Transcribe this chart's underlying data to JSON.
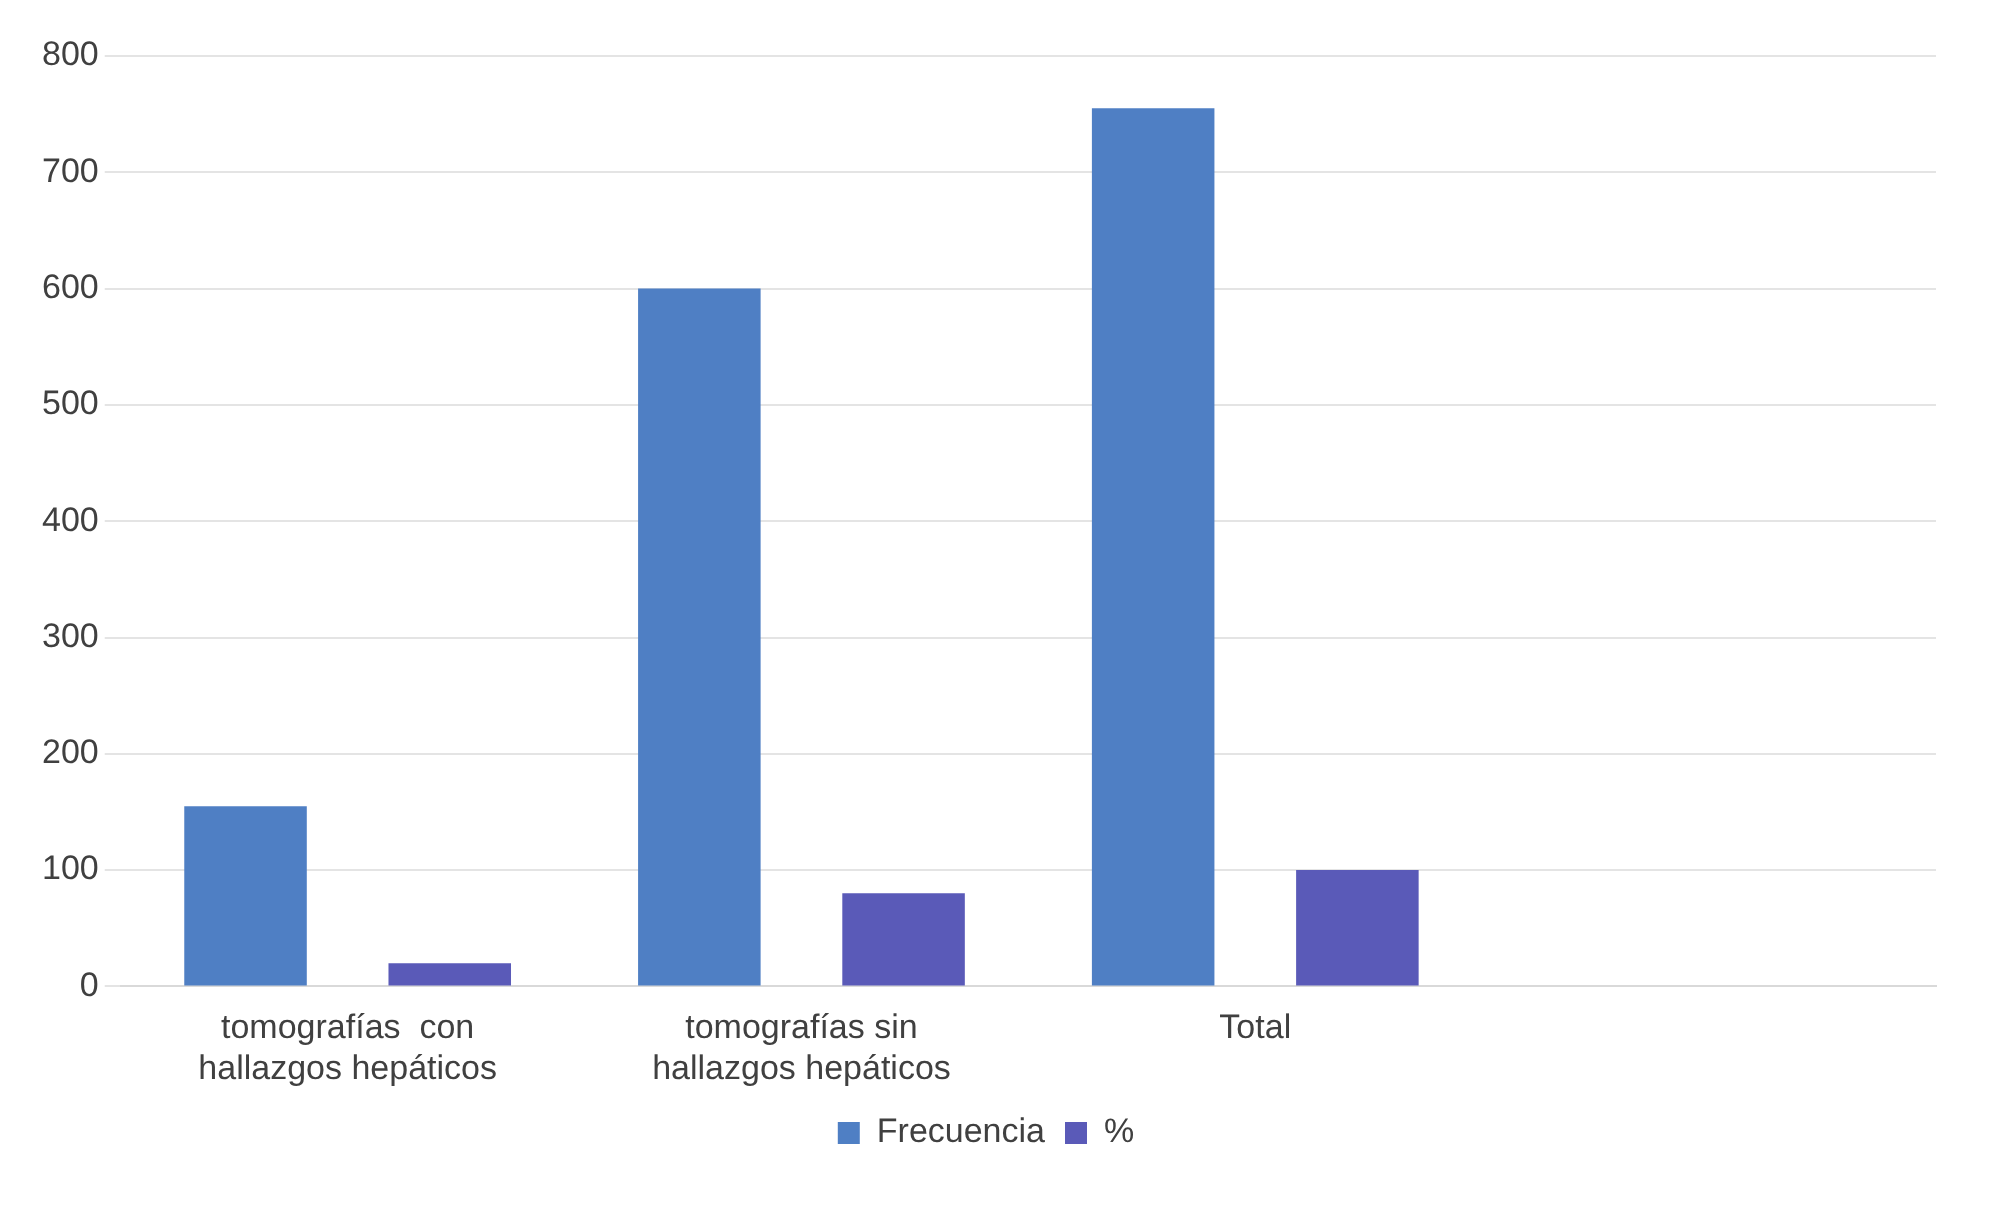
{
  "chart_data": {
    "type": "bar",
    "categories": [
      "tomografías  con hallazgos hepáticos",
      "tomografías sin hallazgos hepáticos",
      "Total",
      null
    ],
    "series": [
      {
        "name": "Frecuencia",
        "color": "#4f7fc4",
        "values": [
          155,
          600,
          755,
          null
        ]
      },
      {
        "name": "%",
        "color": "#5a5ab8",
        "values": [
          20,
          80,
          100,
          null
        ]
      }
    ],
    "ylim": [
      0,
      800
    ],
    "yticks": [
      0,
      100,
      200,
      300,
      400,
      500,
      600,
      700,
      800
    ],
    "grid": "y",
    "legend": "bottom"
  }
}
